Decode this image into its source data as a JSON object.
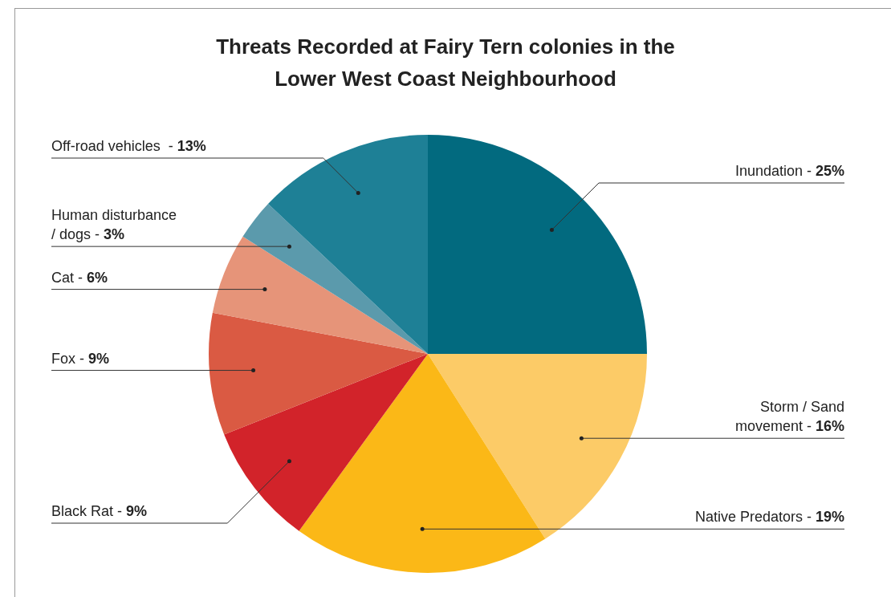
{
  "chart_data": {
    "type": "pie",
    "title": "Threats Recorded at Fairy Tern colonies in the Lower West Coast Neighbourhood",
    "categories": [
      "Inundation -",
      "Storm / Sand movement -",
      "Native Predators -",
      "Black Rat -",
      "Fox -",
      "Cat -",
      "Human disturbance / dogs -",
      "Off-road vehicles  -"
    ],
    "values": [
      25,
      16,
      19,
      9,
      9,
      6,
      3,
      13
    ],
    "colors": [
      "#026a7f",
      "#fccb67",
      "#fbb817",
      "#d2232a",
      "#da5a43",
      "#e69479",
      "#5b9aac",
      "#1e8096"
    ],
    "value_labels": [
      "25%",
      "16%",
      "19%",
      "9%",
      "9%",
      "6%",
      "3%",
      "13%"
    ],
    "legend": false
  }
}
